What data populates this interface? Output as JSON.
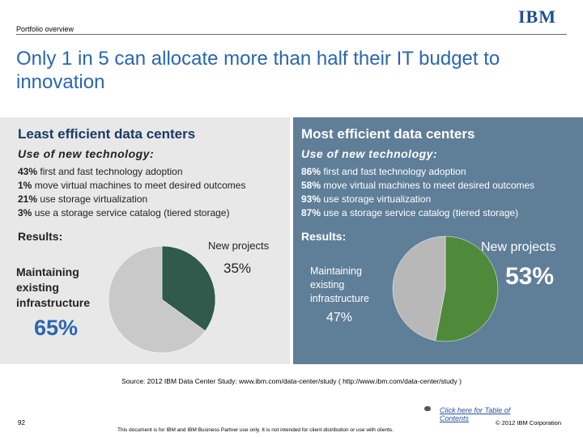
{
  "header": {
    "section": "Portfolio overview",
    "logo": "IBM"
  },
  "title": "Only 1 in 5 can allocate more than half their IT budget to innovation",
  "panels": [
    {
      "heading": "Least efficient data centers",
      "subheading": "Use of new technology:",
      "items": [
        {
          "value": "43%",
          "text": "first and fast technology adoption"
        },
        {
          "value": "1%",
          "text": "move virtual machines to meet desired outcomes"
        },
        {
          "value": "21%",
          "text": "use storage virtualization"
        },
        {
          "value": "3%",
          "text": "use a storage service catalog (tiered storage)"
        }
      ],
      "results": "Results:"
    },
    {
      "heading": "Most efficient data centers",
      "subheading": "Use of new technology:",
      "items": [
        {
          "value": "86%",
          "text": "first and fast technology adoption"
        },
        {
          "value": "58%",
          "text": "move virtual machines to meet desired outcomes"
        },
        {
          "value": "93%",
          "text": "use storage virtualization"
        },
        {
          "value": "87%",
          "text": "use a storage service catalog (tiered storage)"
        }
      ],
      "results": "Results:"
    }
  ],
  "chart_data": [
    {
      "type": "pie",
      "categories": [
        "New projects",
        "Maintaining existing infrastructure"
      ],
      "values": [
        35,
        65
      ],
      "value_labels": [
        "35%",
        "65%"
      ],
      "colors": [
        "#2f5a4c",
        "#c9c9c9"
      ]
    },
    {
      "type": "pie",
      "categories": [
        "New projects",
        "Maintaining existing infrastructure"
      ],
      "values": [
        53,
        47
      ],
      "value_labels": [
        "53%",
        "47%"
      ],
      "colors": [
        "#4f8a3a",
        "#b8b8b8"
      ]
    }
  ],
  "footer": {
    "source": "Source: 2012 IBM Data Center Study: www.ibm.com/data-center/study ( http://www.ibm.com/data-center/study )",
    "toc_link": "Click here for Table of Contents",
    "page": "92",
    "disclaimer": "This document is for IBM and IBM Business Partner use only. It is not intended for client distribution or use with clients.",
    "copyright": "© 2012 IBM Corporation"
  }
}
